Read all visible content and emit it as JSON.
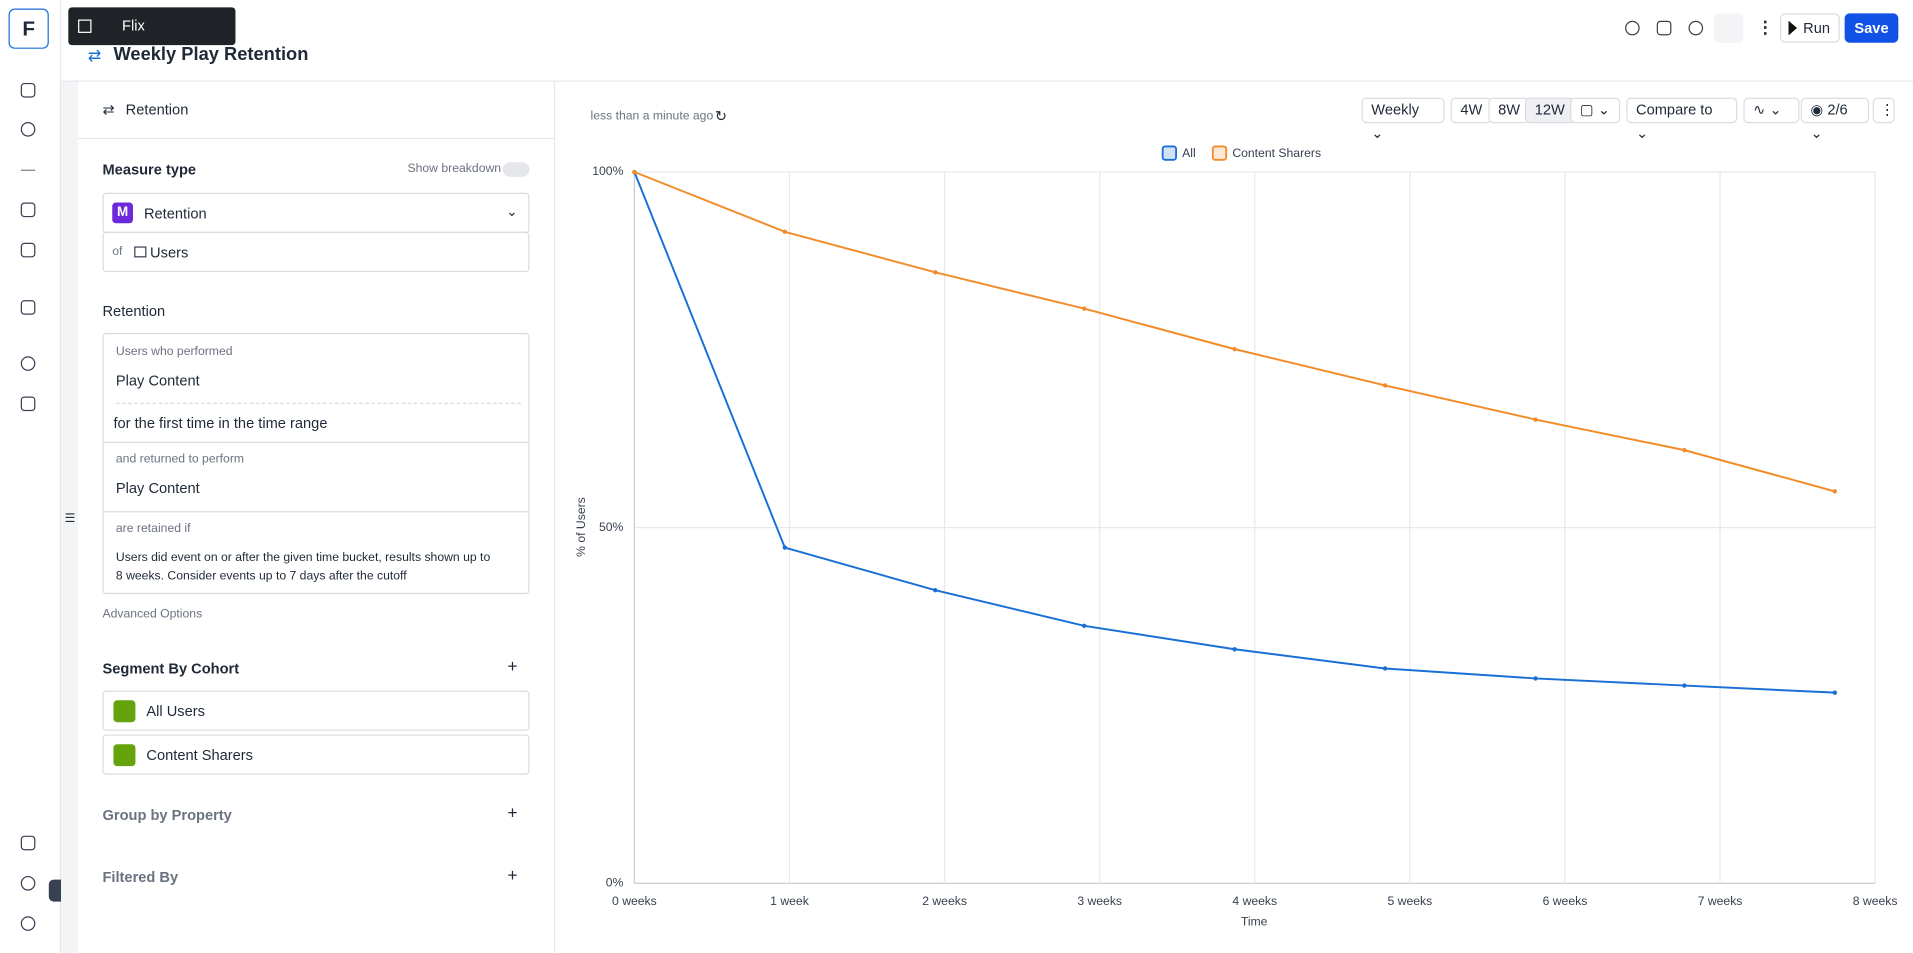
{
  "app": {
    "logo": "F",
    "workspace": "Flix",
    "title": "Weekly Play Retention",
    "run": "Run",
    "save": "Save"
  },
  "panel": {
    "tab": "Retention",
    "measure_type": "Measure type",
    "show_breakdown": "Show breakdown",
    "measure_badge": "M",
    "measure": "Retention",
    "of": "of",
    "entity": "Users",
    "retention_heading": "Retention",
    "performed_label": "Users who performed",
    "performed_event": "Play Content",
    "first_time": "for the first time in the time range",
    "returned_label": "and returned to perform",
    "returned_event": "Play Content",
    "retained_label": "are retained if",
    "retained_text": "Users did event on or after the given time bucket, results shown up to 8 weeks. Consider events up to 7 days after the cutoff",
    "advanced": "Advanced Options",
    "segment_heading": "Segment By Cohort",
    "cohorts": [
      "All Users",
      "Content Sharers"
    ],
    "group_by": "Group by Property",
    "filtered_by": "Filtered By"
  },
  "toolbar": {
    "updated": "less than a minute ago",
    "interval": "Weekly",
    "ranges": [
      "4W",
      "8W",
      "12W"
    ],
    "compare": "Compare to",
    "visible": "2/6"
  },
  "chart_data": {
    "type": "line",
    "x_label": "Time",
    "y_label": "% of Users",
    "x": [
      0,
      0.97,
      1.94,
      2.9,
      3.87,
      4.84,
      5.81,
      6.77,
      7.74
    ],
    "series": [
      {
        "name": "All",
        "color": "#1a6fd6",
        "values": [
          100,
          47.2,
          41.2,
          36.2,
          32.9,
          30.2,
          28.8,
          27.8,
          26.8
        ]
      },
      {
        "name": "Content Sharers",
        "color": "#f28c28",
        "values": [
          100,
          91.6,
          85.9,
          80.8,
          75.1,
          70.0,
          65.2,
          60.9,
          55.1
        ]
      }
    ],
    "xlim": [
      0,
      8
    ],
    "xticks": [
      {
        "value": 0,
        "label": "0 weeks"
      },
      {
        "value": 1,
        "label": "1 week"
      },
      {
        "value": 2,
        "label": "2 weeks"
      },
      {
        "value": 3,
        "label": "3 weeks"
      },
      {
        "value": 4,
        "label": "4 weeks"
      },
      {
        "value": 5,
        "label": "5 weeks"
      },
      {
        "value": 6,
        "label": "6 weeks"
      },
      {
        "value": 7,
        "label": "7 weeks"
      },
      {
        "value": 8,
        "label": "8 weeks"
      }
    ],
    "ylim": [
      0,
      100
    ],
    "yticks": [
      {
        "value": 0,
        "label": "0%"
      },
      {
        "value": 50,
        "label": "50%"
      },
      {
        "value": 100,
        "label": "100%"
      }
    ],
    "grid": true,
    "legend": "top"
  }
}
